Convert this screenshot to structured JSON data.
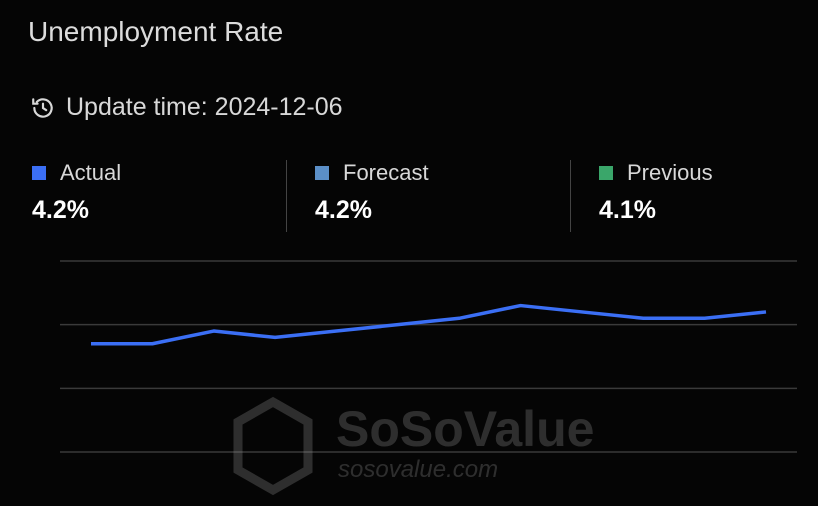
{
  "title": "Unemployment Rate",
  "update": {
    "icon": "history-icon",
    "text": "Update time: 2024-12-06"
  },
  "stats": [
    {
      "label": "Actual",
      "value": "4.2%",
      "color": "#3b6ff5"
    },
    {
      "label": "Forecast",
      "value": "4.2%",
      "color": "#5b8fc7"
    },
    {
      "label": "Previous",
      "value": "4.1%",
      "color": "#3aa66a"
    }
  ],
  "watermark": {
    "brand": "SoSoValue",
    "site": "sosovalue.com"
  },
  "chart_data": {
    "type": "line",
    "title": "",
    "xlabel": "",
    "ylabel": "",
    "ylim": [
      2,
      5
    ],
    "gridlines": [
      2,
      3,
      4,
      5
    ],
    "grid": true,
    "line_color": "#3b6ff5",
    "values": [
      3.7,
      3.7,
      3.9,
      3.8,
      3.9,
      4.0,
      4.1,
      4.3,
      4.2,
      4.1,
      4.1,
      4.2
    ]
  }
}
